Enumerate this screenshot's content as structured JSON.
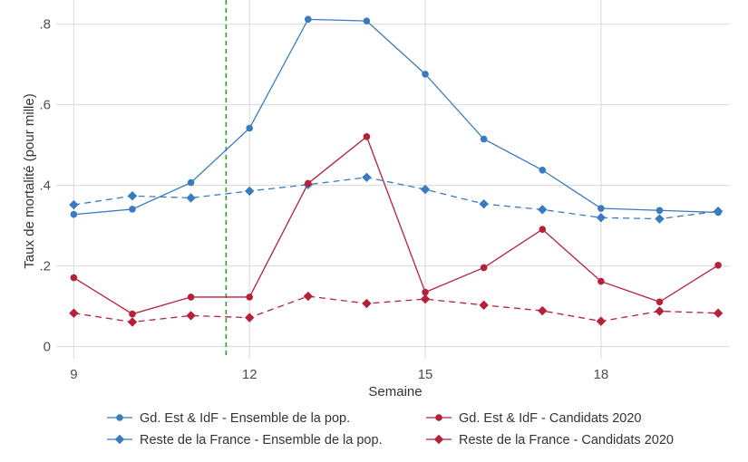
{
  "chart_data": {
    "type": "line",
    "title": "",
    "xlabel": "Semaine",
    "ylabel": "Taux de mortalité (pour mille)",
    "xlim": [
      8.7,
      20.2
    ],
    "ylim": [
      -0.03,
      0.86
    ],
    "x_ticks": [
      9,
      12,
      15,
      18
    ],
    "x_tick_labels": [
      "9",
      "12",
      "15",
      "18"
    ],
    "y_ticks": [
      0,
      0.2,
      0.4,
      0.6,
      0.8
    ],
    "y_tick_labels": [
      "0",
      ".2",
      ".4",
      ".6",
      ".8"
    ],
    "grid": true,
    "legend_position": "bottom",
    "reference_line": {
      "x": 11.6,
      "style": "dashed",
      "color": "#2ca02c"
    },
    "x": [
      9,
      10,
      11,
      12,
      13,
      14,
      15,
      16,
      17,
      18,
      19,
      20
    ],
    "series": [
      {
        "name": "Gd. Est & IdF - Ensemble de la pop.",
        "color": "#3a7bbf",
        "marker": "circle",
        "dash": "solid",
        "values": [
          0.328,
          0.341,
          0.407,
          0.542,
          0.812,
          0.808,
          0.676,
          0.515,
          0.438,
          0.343,
          0.338,
          0.333
        ]
      },
      {
        "name": "Reste de la France - Ensemble de la pop.",
        "color": "#3a7bbf",
        "marker": "diamond",
        "dash": "dashed",
        "values": [
          0.352,
          0.374,
          0.369,
          0.386,
          0.402,
          0.42,
          0.39,
          0.354,
          0.34,
          0.32,
          0.317,
          0.336
        ]
      },
      {
        "name": "Gd. Est & IdF - Candidats 2020",
        "color": "#b5213a",
        "marker": "circle",
        "dash": "solid",
        "values": [
          0.171,
          0.081,
          0.123,
          0.123,
          0.405,
          0.521,
          0.135,
          0.196,
          0.291,
          0.162,
          0.111,
          0.202
        ]
      },
      {
        "name": "Reste de la France - Candidats 2020",
        "color": "#b5213a",
        "marker": "diamond",
        "dash": "dashed",
        "values": [
          0.083,
          0.061,
          0.077,
          0.072,
          0.125,
          0.107,
          0.118,
          0.103,
          0.089,
          0.063,
          0.088,
          0.083
        ]
      }
    ]
  }
}
